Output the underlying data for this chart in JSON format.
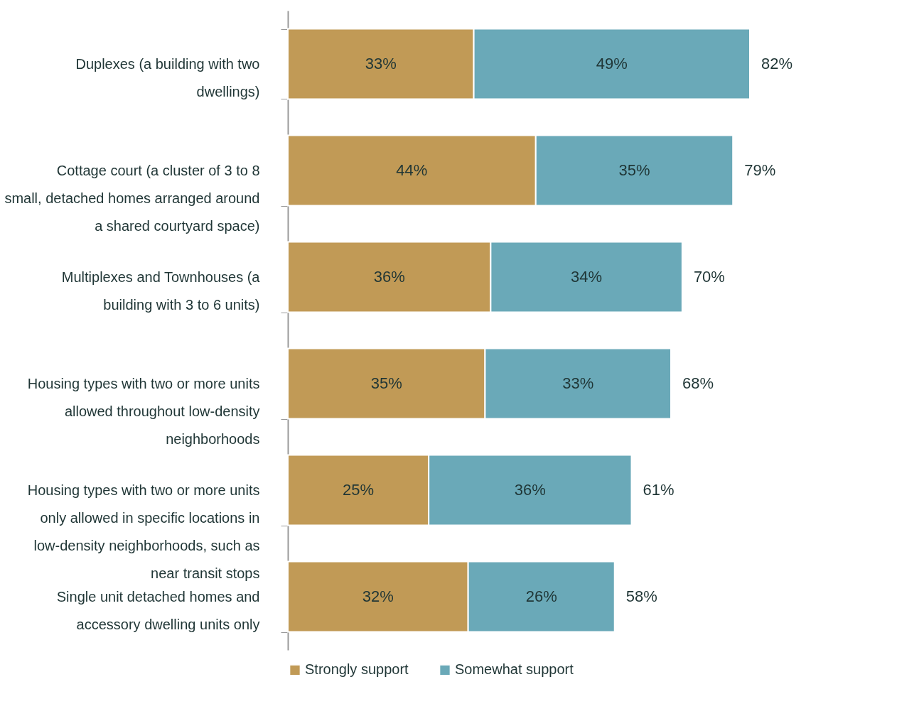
{
  "chart_data": {
    "type": "bar",
    "orientation": "horizontal",
    "stacked": true,
    "categories": [
      "Duplexes (a building with two dwellings)",
      "Cottage court (a cluster of 3 to 8 small, detached homes arranged around a shared courtyard space)",
      "Multiplexes and Townhouses (a building with 3 to 6 units)",
      "Housing types with two or more units allowed throughout low-density neighborhoods",
      "Housing types with two or more units only allowed in specific locations in low-density neighborhoods, such as near transit stops",
      "Single unit detached homes and accessory dwelling units only"
    ],
    "series": [
      {
        "name": "Strongly support",
        "color": "#c19a56",
        "values": [
          33,
          44,
          36,
          35,
          25,
          32
        ],
        "value_labels": [
          "33%",
          "44%",
          "36%",
          "35%",
          "25%",
          "32%"
        ]
      },
      {
        "name": "Somewhat support",
        "color": "#6aa9b8",
        "values": [
          49,
          35,
          34,
          33,
          36,
          26
        ],
        "value_labels": [
          "49%",
          "35%",
          "34%",
          "33%",
          "36%",
          "26%"
        ]
      }
    ],
    "totals": [
      "82%",
      "79%",
      "70%",
      "68%",
      "61%",
      "58%"
    ],
    "legend": "bottom"
  }
}
